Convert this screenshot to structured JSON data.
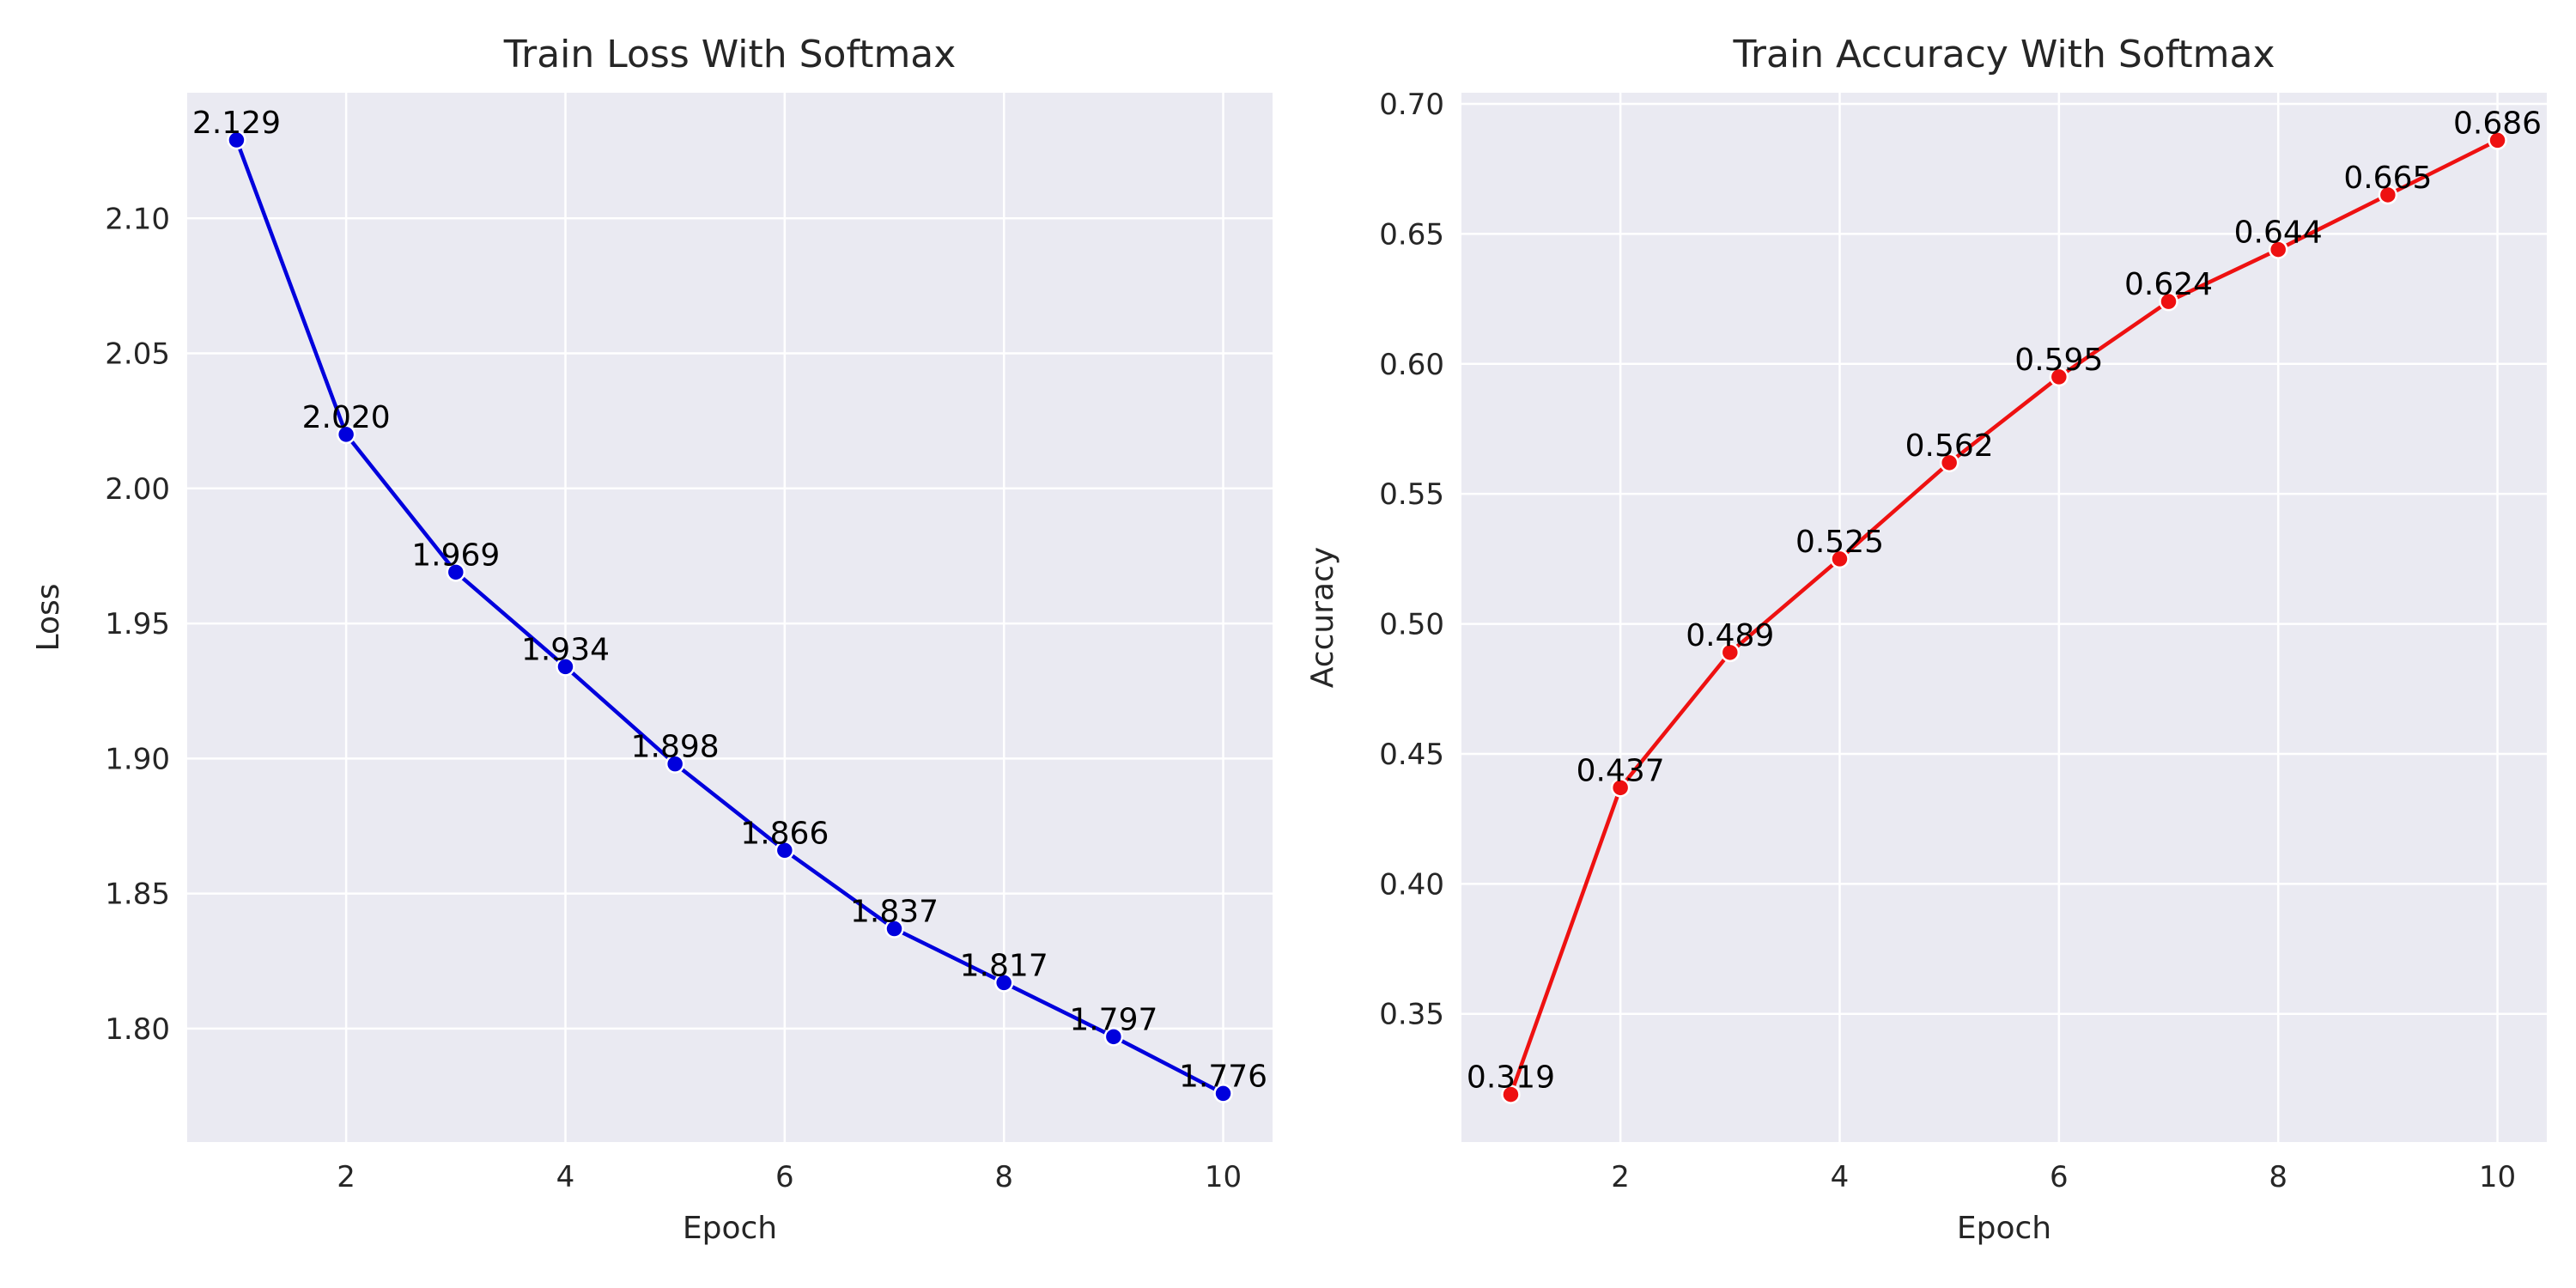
{
  "chart_data": [
    {
      "type": "line",
      "title": "Train Loss With Softmax",
      "xlabel": "Epoch",
      "ylabel": "Loss",
      "x": [
        1,
        2,
        3,
        4,
        5,
        6,
        7,
        8,
        9,
        10
      ],
      "series": [
        {
          "values": [
            2.129,
            2.02,
            1.969,
            1.934,
            1.898,
            1.866,
            1.837,
            1.817,
            1.797,
            1.776
          ],
          "labels": [
            "2.129",
            "2.020",
            "1.969",
            "1.934",
            "1.898",
            "1.866",
            "1.837",
            "1.817",
            "1.797",
            "1.776"
          ]
        }
      ],
      "xlim": [
        0.55,
        10.45
      ],
      "ylim": [
        1.758,
        2.1465
      ],
      "xticks": [
        2,
        4,
        6,
        8,
        10
      ],
      "xtick_labels": [
        "2",
        "4",
        "6",
        "8",
        "10"
      ],
      "yticks": [
        1.8,
        1.85,
        1.9,
        1.95,
        2.0,
        2.05,
        2.1
      ],
      "ytick_labels": [
        "1.80",
        "1.85",
        "1.90",
        "1.95",
        "2.00",
        "2.05",
        "2.10"
      ],
      "grid": true,
      "color": "#0000dd"
    },
    {
      "type": "line",
      "title": "Train Accuracy With Softmax",
      "xlabel": "Epoch",
      "ylabel": "Accuracy",
      "x": [
        1,
        2,
        3,
        4,
        5,
        6,
        7,
        8,
        9,
        10
      ],
      "series": [
        {
          "values": [
            0.319,
            0.437,
            0.489,
            0.525,
            0.562,
            0.595,
            0.624,
            0.644,
            0.665,
            0.686
          ],
          "labels": [
            "0.319",
            "0.437",
            "0.489",
            "0.525",
            "0.562",
            "0.595",
            "0.624",
            "0.644",
            "0.665",
            "0.686"
          ]
        }
      ],
      "xlim": [
        0.55,
        10.45
      ],
      "ylim": [
        0.3007,
        0.7043
      ],
      "xticks": [
        2,
        4,
        6,
        8,
        10
      ],
      "xtick_labels": [
        "2",
        "4",
        "6",
        "8",
        "10"
      ],
      "yticks": [
        0.35,
        0.4,
        0.45,
        0.5,
        0.55,
        0.6,
        0.65,
        0.7
      ],
      "ytick_labels": [
        "0.35",
        "0.40",
        "0.45",
        "0.50",
        "0.55",
        "0.60",
        "0.65",
        "0.70"
      ],
      "grid": true,
      "color": "#ee1111"
    }
  ]
}
